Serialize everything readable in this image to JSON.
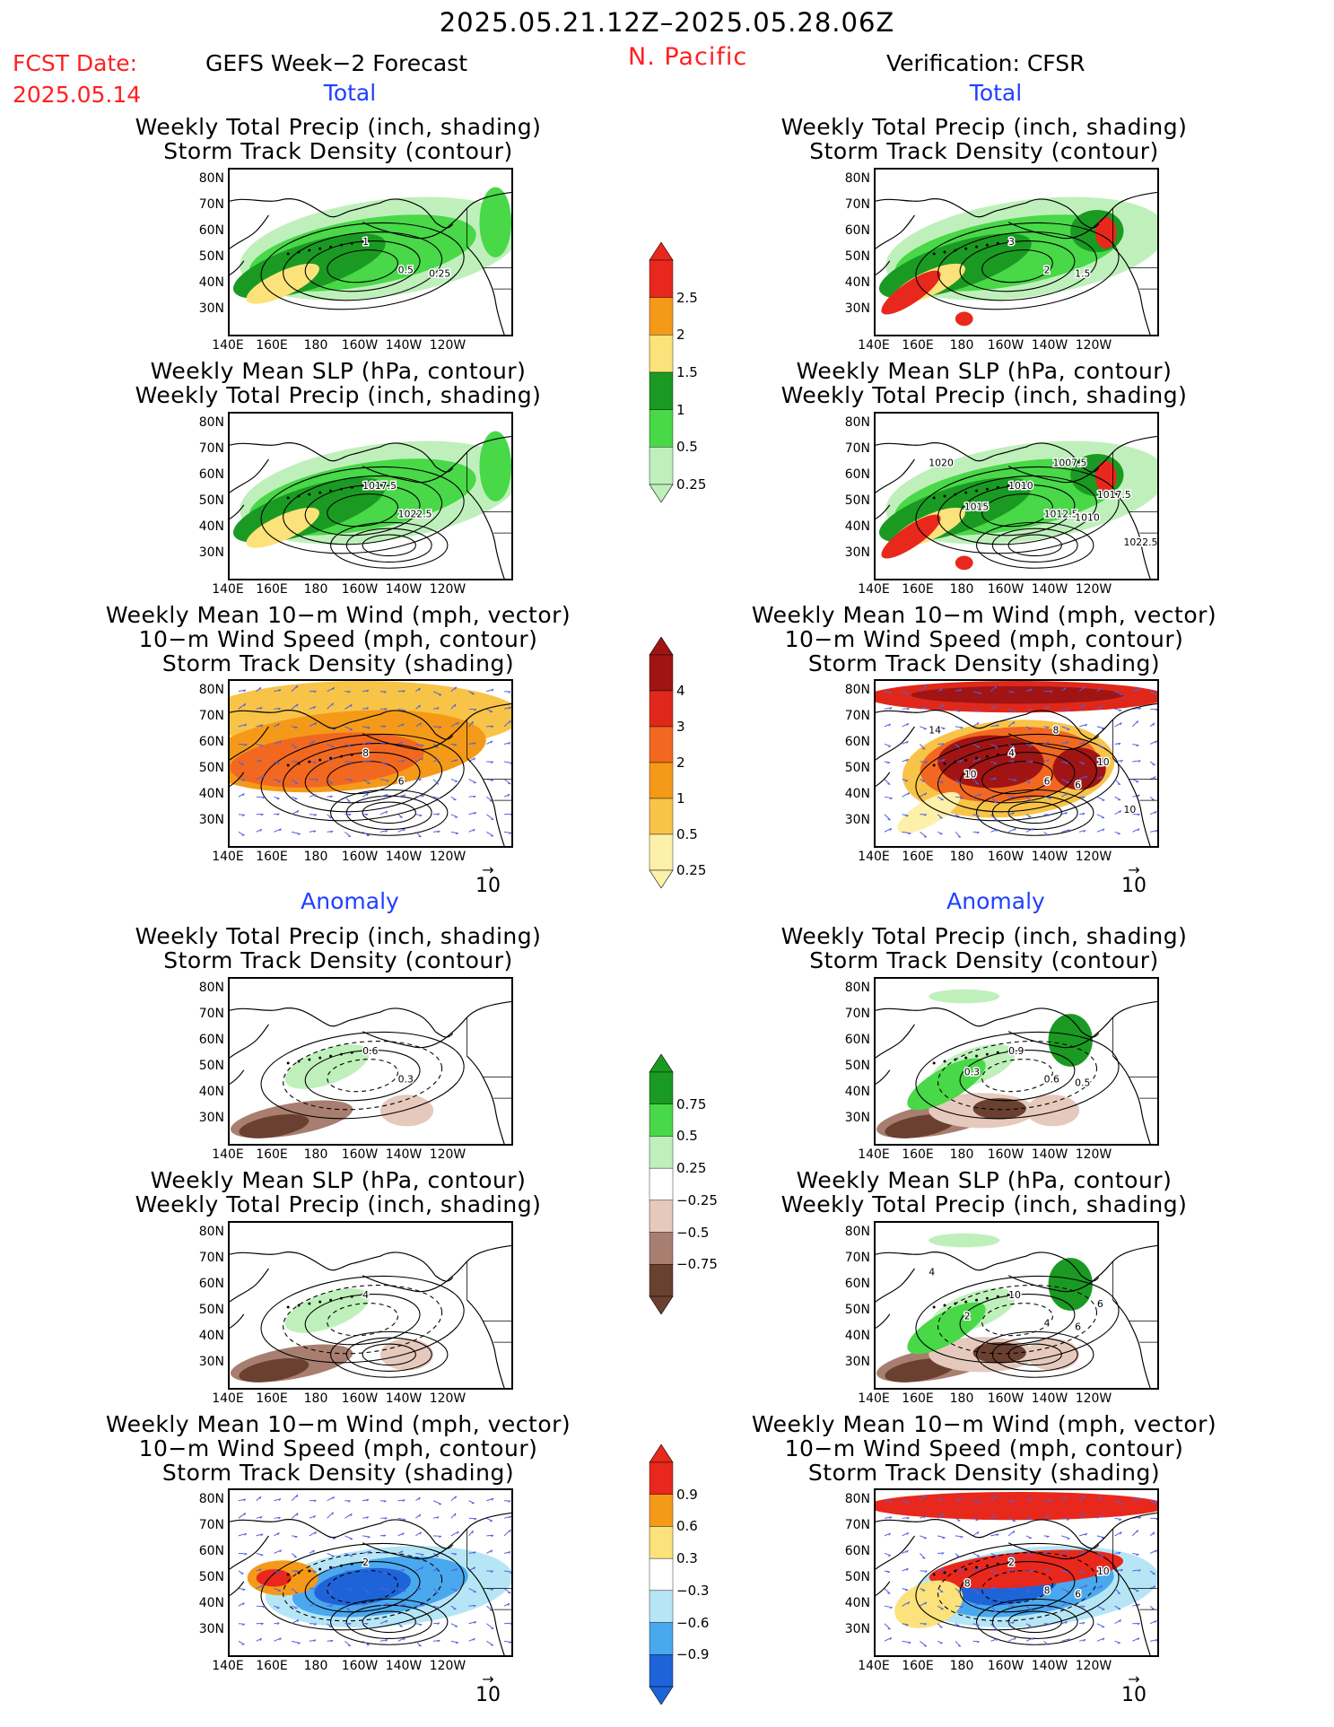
{
  "header": {
    "date_range": "2025.05.21.12Z–2025.05.28.06Z",
    "fcst_label": "FCST Date:",
    "fcst_date": "2025.05.14",
    "region": "N. Pacific",
    "left_title": "GEFS Week−2 Forecast",
    "right_title": "Verification: CFSR"
  },
  "sections": {
    "total": "Total",
    "anomaly": "Anomaly"
  },
  "panel_titles": {
    "precip_storm": [
      "Weekly Total Precip (inch, shading)",
      "Storm Track Density (contour)"
    ],
    "slp_precip": [
      "Weekly Mean SLP (hPa, contour)",
      "Weekly Total Precip (inch, shading)"
    ],
    "wind_storm": [
      "Weekly Mean 10−m Wind (mph, vector)",
      "10−m Wind Speed (mph, contour)",
      "Storm Track Density (shading)"
    ]
  },
  "axes": {
    "lat_labels": [
      "80N",
      "70N",
      "60N",
      "50N",
      "40N",
      "30N"
    ],
    "lon_labels": [
      "140E",
      "160E",
      "180",
      "160W",
      "140W",
      "120W"
    ]
  },
  "vector_ref": "10",
  "colorbars": [
    {
      "id": "total-precip",
      "labels": [
        "2.5",
        "2",
        "1.5",
        "1",
        "0.5",
        "0.25"
      ],
      "colors": [
        "#e8281c",
        "#f59a18",
        "#fbe27a",
        "#1a9a22",
        "#48d848",
        "#bff0bb"
      ]
    },
    {
      "id": "total-storm",
      "labels": [
        "4",
        "3",
        "2",
        "1",
        "0.5",
        "0.25"
      ],
      "colors": [
        "#a01414",
        "#e0281a",
        "#f26820",
        "#f59a18",
        "#f8c448",
        "#fdf0a8"
      ]
    },
    {
      "id": "anom-precip",
      "labels": [
        "0.75",
        "0.5",
        "0.25",
        "−0.25",
        "−0.5",
        "−0.75"
      ],
      "colors": [
        "#1a9a22",
        "#48d848",
        "#bff0bb",
        "#ffffff",
        "#e6c9bd",
        "#a87e70",
        "#6a4030"
      ]
    },
    {
      "id": "anom-storm",
      "labels": [
        "0.9",
        "0.6",
        "0.3",
        "−0.3",
        "−0.6",
        "−0.9"
      ],
      "colors": [
        "#e8281c",
        "#f59a18",
        "#fbe27a",
        "#ffffff",
        "#b6e6f6",
        "#4aa8ee",
        "#1e64d8"
      ]
    }
  ],
  "contour_labels": {
    "L1": [
      "1",
      "0.5",
      "0.25"
    ],
    "R1": [
      "3",
      "2",
      "1.5"
    ],
    "L2": [
      "1017.5",
      "1022.5"
    ],
    "R2": [
      "1010",
      "1012.5",
      "1010",
      "1015",
      "1017.5",
      "1020",
      "1007.5",
      "1022.5"
    ],
    "L3": [
      "8",
      "6"
    ],
    "R3": [
      "4",
      "6",
      "6",
      "10",
      "10",
      "14",
      "8",
      "10"
    ],
    "L4": [
      "0.6",
      "0.3"
    ],
    "R4": [
      "0.9",
      "0.6",
      "0.5",
      "0.3"
    ],
    "L5": [
      "4"
    ],
    "R5": [
      "10",
      "4",
      "6",
      "2",
      "6",
      "4"
    ],
    "L6": [
      "2"
    ],
    "R6": [
      "2",
      "8",
      "6",
      "8",
      "10"
    ]
  }
}
